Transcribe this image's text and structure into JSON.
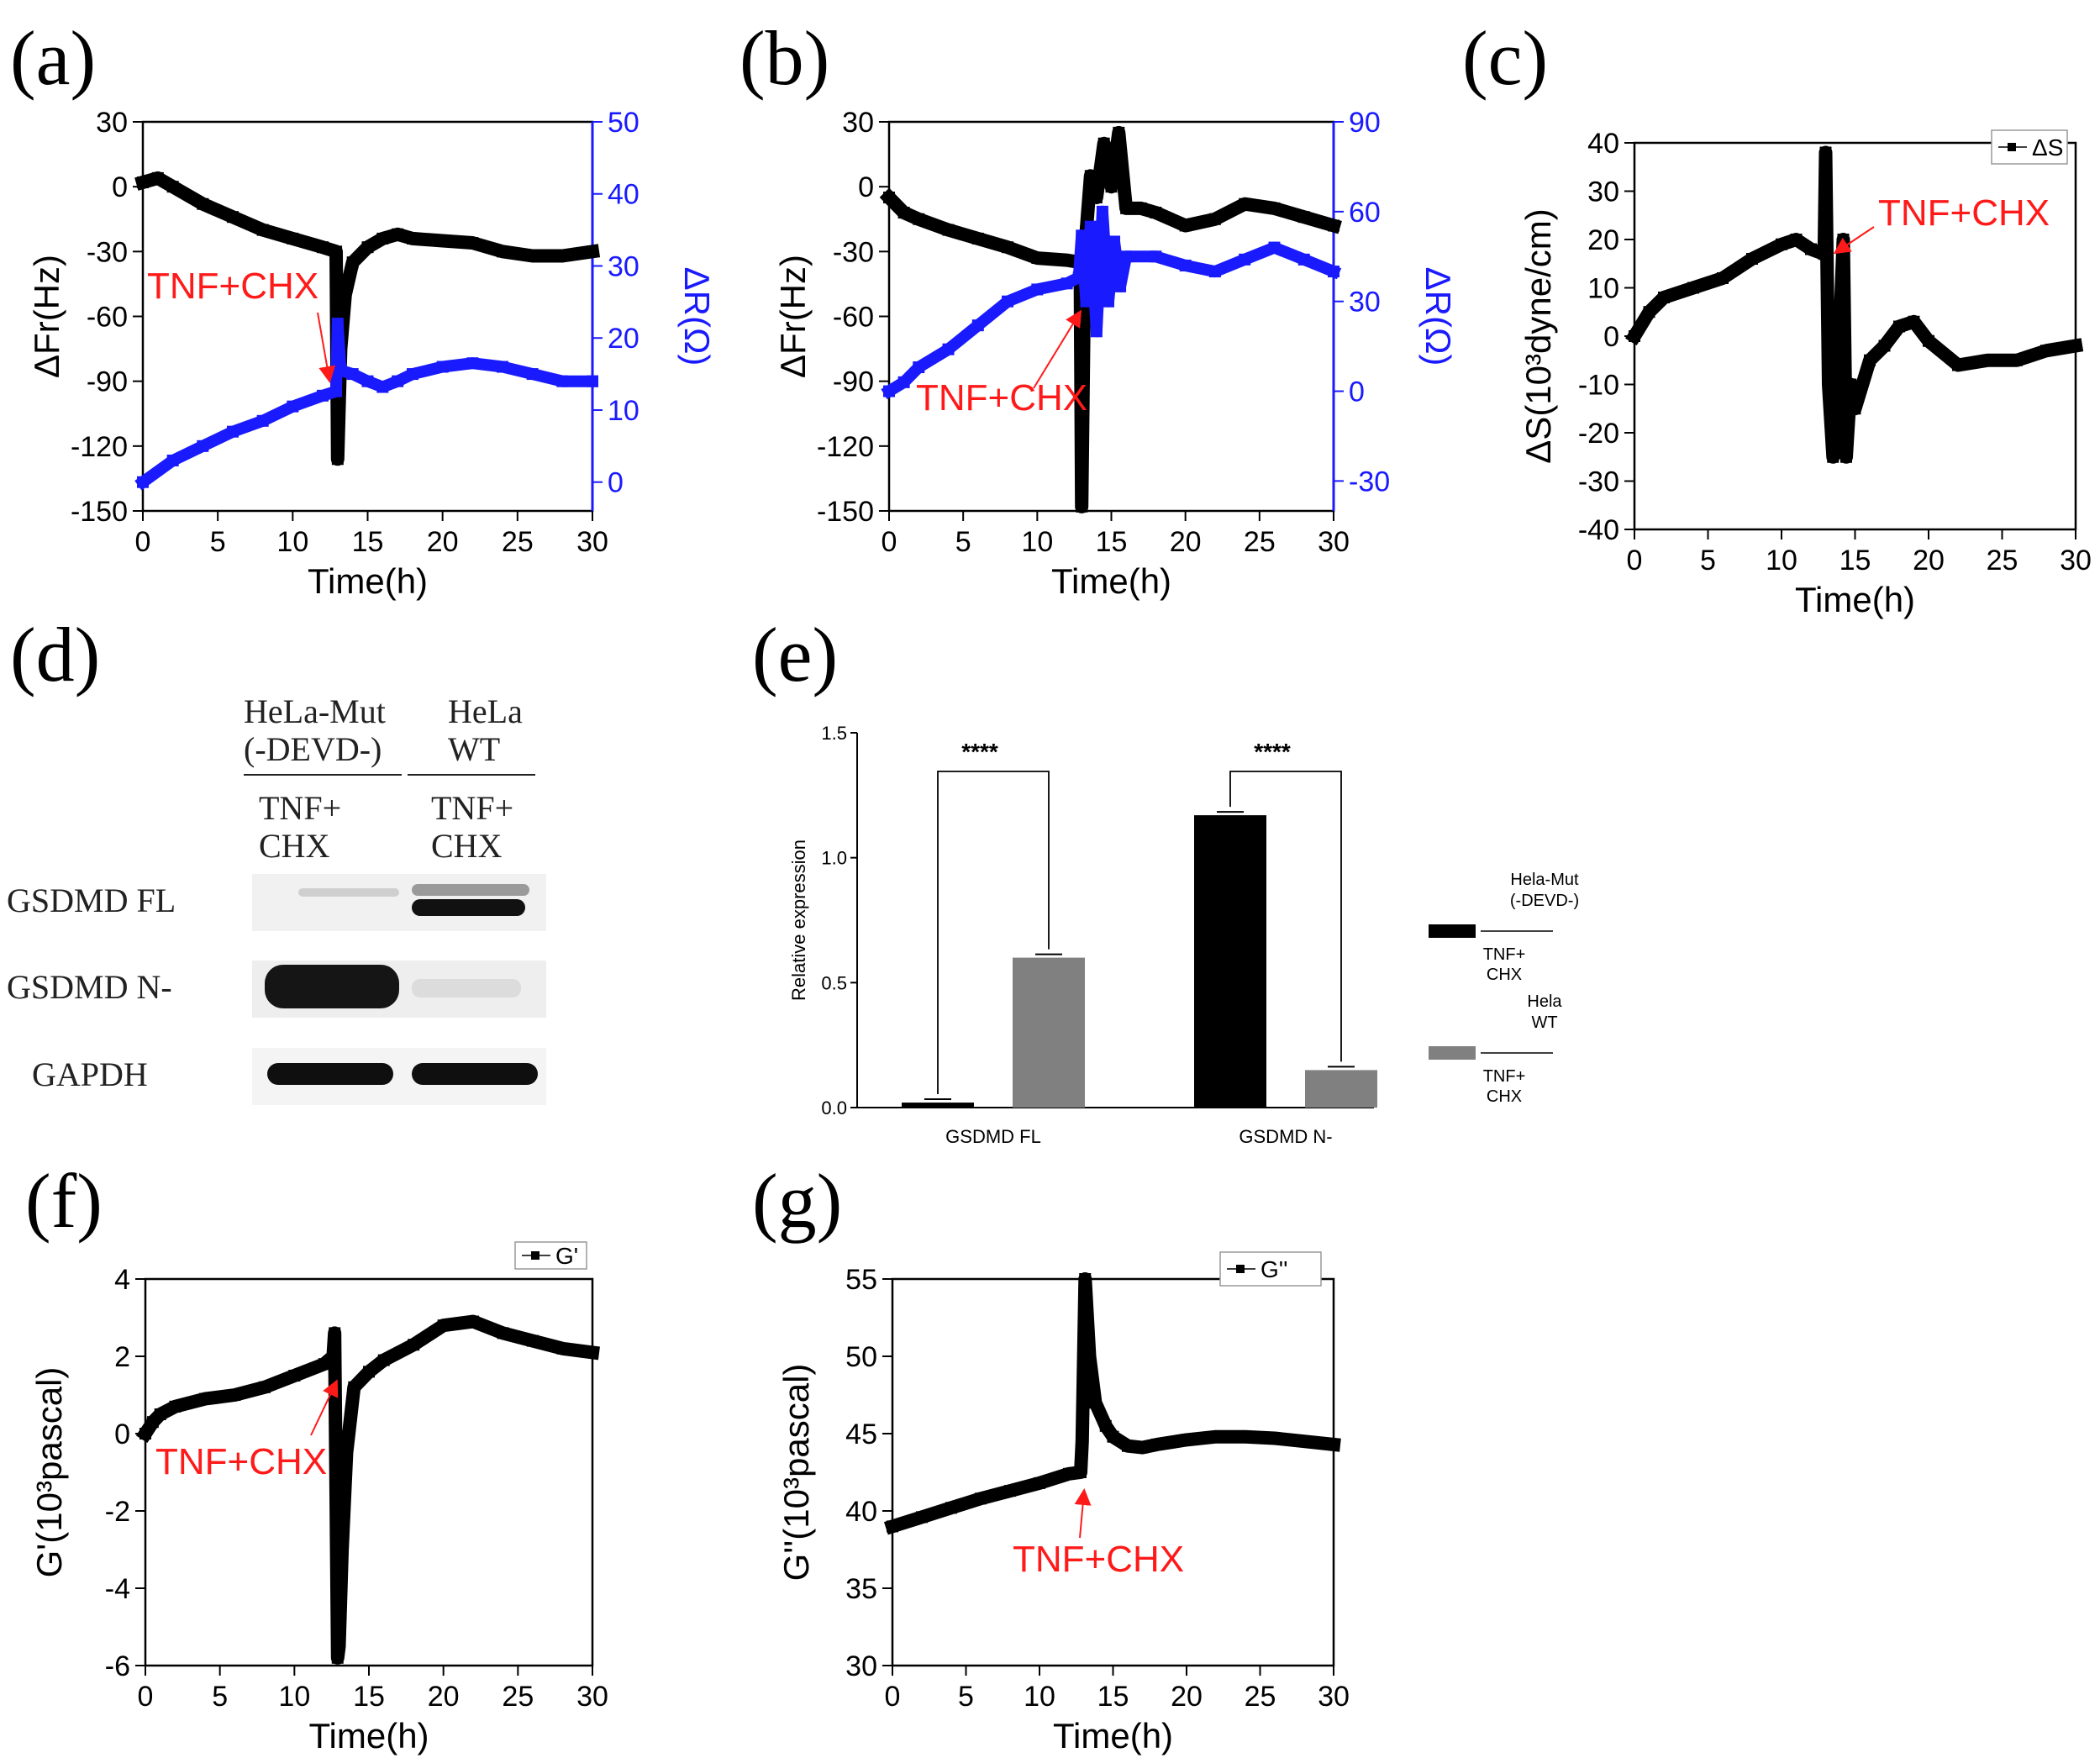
{
  "panel_labels": {
    "a": "(a)",
    "b": "(b)",
    "c": "(c)",
    "d": "(d)",
    "e": "(e)",
    "f": "(f)",
    "g": "(g)"
  },
  "colors": {
    "black_series": "#000000",
    "blue_series": "#1a1aff",
    "annotation": "#ff1a1a",
    "bar_mut": "#000000",
    "bar_wt": "#808080"
  },
  "chart_data": [
    {
      "id": "a",
      "type": "line",
      "xlabel": "Time(h)",
      "ylabel": "ΔFr(Hz)",
      "y2label": "ΔR(Ω)",
      "xlim": [
        0,
        30
      ],
      "ylim": [
        -150,
        30
      ],
      "y2lim": [
        -4,
        50
      ],
      "xticks": [
        "0",
        "5",
        "10",
        "15",
        "20",
        "25",
        "30"
      ],
      "yticks": [
        "30",
        "0",
        "-30",
        "-60",
        "-90",
        "-120",
        "-150"
      ],
      "y2ticks": [
        "50",
        "40",
        "30",
        "20",
        "10",
        "0"
      ],
      "annotation": "TNF+CHX",
      "series": [
        {
          "name": "ΔFr",
          "axis": "left",
          "color": "#000000",
          "x": [
            0,
            1,
            2,
            4,
            6,
            8,
            10,
            12,
            12.9,
            13.0,
            13.2,
            13.5,
            14,
            15,
            16,
            17,
            18,
            20,
            22,
            24,
            26,
            28,
            30
          ],
          "y": [
            2,
            4,
            0,
            -8,
            -14,
            -20,
            -24,
            -28,
            -30,
            -126,
            -75,
            -50,
            -35,
            -28,
            -24,
            -22,
            -24,
            -25,
            -26,
            -30,
            -32,
            -32,
            -30
          ]
        },
        {
          "name": "ΔR",
          "axis": "right",
          "color": "#1a1aff",
          "x": [
            0,
            2,
            4,
            6,
            8,
            10,
            12,
            12.9,
            13.0,
            13.2,
            14,
            15,
            16,
            17,
            18,
            20,
            22,
            24,
            26,
            28,
            30
          ],
          "y": [
            0,
            3,
            5,
            7,
            8.5,
            10.5,
            12,
            12.6,
            22,
            15.5,
            15,
            14,
            13.2,
            14,
            15,
            16,
            16.5,
            16,
            15,
            14,
            14
          ]
        }
      ]
    },
    {
      "id": "b",
      "type": "line",
      "xlabel": "Time(h)",
      "ylabel": "ΔFr(Hz)",
      "y2label": "ΔR(Ω)",
      "xlim": [
        0,
        30
      ],
      "ylim": [
        -150,
        30
      ],
      "y2lim": [
        -40,
        90
      ],
      "xticks": [
        "0",
        "5",
        "10",
        "15",
        "20",
        "25",
        "30"
      ],
      "yticks": [
        "30",
        "0",
        "-30",
        "-60",
        "-90",
        "-120",
        "-150"
      ],
      "y2ticks": [
        "90",
        "60",
        "30",
        "0",
        "-30"
      ],
      "annotation": "TNF+CHX",
      "series": [
        {
          "name": "ΔFr",
          "axis": "left",
          "color": "#000000",
          "x": [
            0,
            1,
            2,
            4,
            6,
            8,
            10,
            12,
            12.9,
            13.0,
            13.2,
            13.6,
            14,
            14.5,
            15,
            15.5,
            16,
            17,
            18,
            20,
            22,
            24,
            26,
            28,
            30
          ],
          "y": [
            -5,
            -12,
            -15,
            -20,
            -24,
            -28,
            -33,
            -34,
            -35,
            -148,
            -30,
            5,
            -5,
            20,
            0,
            25,
            -10,
            -10,
            -12,
            -18,
            -15,
            -8,
            -10,
            -14,
            -18
          ]
        },
        {
          "name": "ΔR",
          "axis": "right",
          "color": "#1a1aff",
          "x": [
            0,
            1,
            2,
            4,
            6,
            8,
            10,
            12,
            12.8,
            13.0,
            13.3,
            13.6,
            14,
            14.4,
            14.8,
            15.2,
            15.6,
            16,
            18,
            20,
            22,
            24,
            26,
            28,
            30
          ],
          "y": [
            0,
            3,
            8,
            14,
            22,
            30,
            34,
            36,
            38,
            52,
            30,
            55,
            20,
            60,
            30,
            50,
            35,
            45,
            45,
            42,
            40,
            44,
            48,
            44,
            40
          ]
        }
      ]
    },
    {
      "id": "c",
      "type": "line",
      "xlabel": "Time(h)",
      "ylabel": "ΔS(10³dyne/cm)",
      "xlim": [
        0,
        30
      ],
      "ylim": [
        -40,
        40
      ],
      "xticks": [
        "0",
        "5",
        "10",
        "15",
        "20",
        "25",
        "30"
      ],
      "yticks": [
        "40",
        "30",
        "20",
        "10",
        "0",
        "-10",
        "-20",
        "-30",
        "-40"
      ],
      "legend": "ΔS",
      "annotation": "TNF+CHX",
      "series": [
        {
          "name": "ΔS",
          "color": "#000000",
          "x": [
            0,
            1,
            2,
            4,
            6,
            8,
            10,
            11,
            12,
            12.9,
            13.0,
            13.2,
            13.5,
            13.8,
            14.2,
            14.4,
            14.7,
            15,
            16,
            17,
            18,
            19,
            20,
            22,
            24,
            26,
            28,
            30
          ],
          "y": [
            0,
            5,
            8,
            10,
            12,
            16,
            19,
            20,
            18,
            17,
            38,
            -10,
            -25,
            -12,
            20,
            -25,
            -10,
            -15,
            -5,
            -2,
            2,
            3,
            -1,
            -6,
            -5,
            -5,
            -3,
            -2
          ]
        }
      ]
    },
    {
      "id": "e",
      "type": "bar",
      "categories": [
        "GSDMD FL",
        "GSDMD N-"
      ],
      "ylabel": "Relative expression",
      "ylim": [
        0,
        1.5
      ],
      "yticks": [
        "0.0",
        "0.5",
        "1.0",
        "1.5"
      ],
      "significance": [
        "****",
        "****"
      ],
      "series": [
        {
          "name": "Hela-Mut (-DEVD-) TNF+CHX",
          "values": [
            0.02,
            1.17
          ],
          "color": "#000000"
        },
        {
          "name": "Hela WT TNF+CHX",
          "values": [
            0.6,
            0.15
          ],
          "color": "#808080"
        }
      ],
      "legend": [
        {
          "top": "Hela-Mut",
          "mid": "(-DEVD-)",
          "bot1": "TNF+",
          "bot2": "CHX"
        },
        {
          "top": "Hela",
          "mid": "WT",
          "bot1": "TNF+",
          "bot2": "CHX"
        }
      ]
    },
    {
      "id": "f",
      "type": "line",
      "xlabel": "Time(h)",
      "ylabel": "G'(10³pascal)",
      "xlim": [
        0,
        30
      ],
      "ylim": [
        -6,
        4
      ],
      "xticks": [
        "0",
        "5",
        "10",
        "15",
        "20",
        "25",
        "30"
      ],
      "yticks": [
        "4",
        "2",
        "0",
        "-2",
        "-4",
        "-6"
      ],
      "legend": "G'",
      "annotation": "TNF+CHX",
      "series": [
        {
          "name": "G'",
          "color": "#000000",
          "x": [
            0,
            0.5,
            1,
            2,
            4,
            6,
            8,
            10,
            12,
            12.6,
            12.7,
            12.9,
            13.0,
            13.2,
            13.5,
            14,
            15,
            16,
            18,
            20,
            22,
            24,
            26,
            28,
            30
          ],
          "y": [
            0,
            0.3,
            0.5,
            0.7,
            0.9,
            1.0,
            1.2,
            1.5,
            1.8,
            2.0,
            2.6,
            -5.8,
            -5.5,
            -3.0,
            -0.5,
            1.2,
            1.6,
            1.9,
            2.3,
            2.8,
            2.9,
            2.6,
            2.4,
            2.2,
            2.1
          ]
        }
      ]
    },
    {
      "id": "g",
      "type": "line",
      "xlabel": "Time(h)",
      "ylabel": "G''(10³pascal)",
      "xlim": [
        0,
        30
      ],
      "ylim": [
        30,
        55
      ],
      "xticks": [
        "0",
        "5",
        "10",
        "15",
        "20",
        "25",
        "30"
      ],
      "yticks": [
        "55",
        "50",
        "45",
        "40",
        "35",
        "30"
      ],
      "legend": "G''",
      "annotation": "TNF+CHX",
      "series": [
        {
          "name": "G''",
          "color": "#000000",
          "x": [
            0,
            2,
            4,
            6,
            8,
            10,
            12,
            12.8,
            12.9,
            13.1,
            13.4,
            13.8,
            14.5,
            15,
            16,
            17,
            18,
            20,
            22,
            24,
            26,
            28,
            30
          ],
          "y": [
            39,
            39.6,
            40.2,
            40.8,
            41.3,
            41.8,
            42.4,
            42.5,
            44.5,
            55,
            50,
            47,
            45.5,
            44.8,
            44.2,
            44.1,
            44.3,
            44.6,
            44.8,
            44.8,
            44.7,
            44.5,
            44.3
          ]
        }
      ]
    }
  ],
  "western_blot": {
    "col1_header_line1": "HeLa-Mut",
    "col1_header_line2": "(-DEVD-)",
    "col2_header_line1": "HeLa",
    "col2_header_line2": "WT",
    "treat1_line1": "TNF+",
    "treat1_line2": "CHX",
    "treat2_line1": "TNF+",
    "treat2_line2": "CHX",
    "rows": [
      "GSDMD FL",
      "GSDMD N-",
      "GAPDH"
    ]
  }
}
